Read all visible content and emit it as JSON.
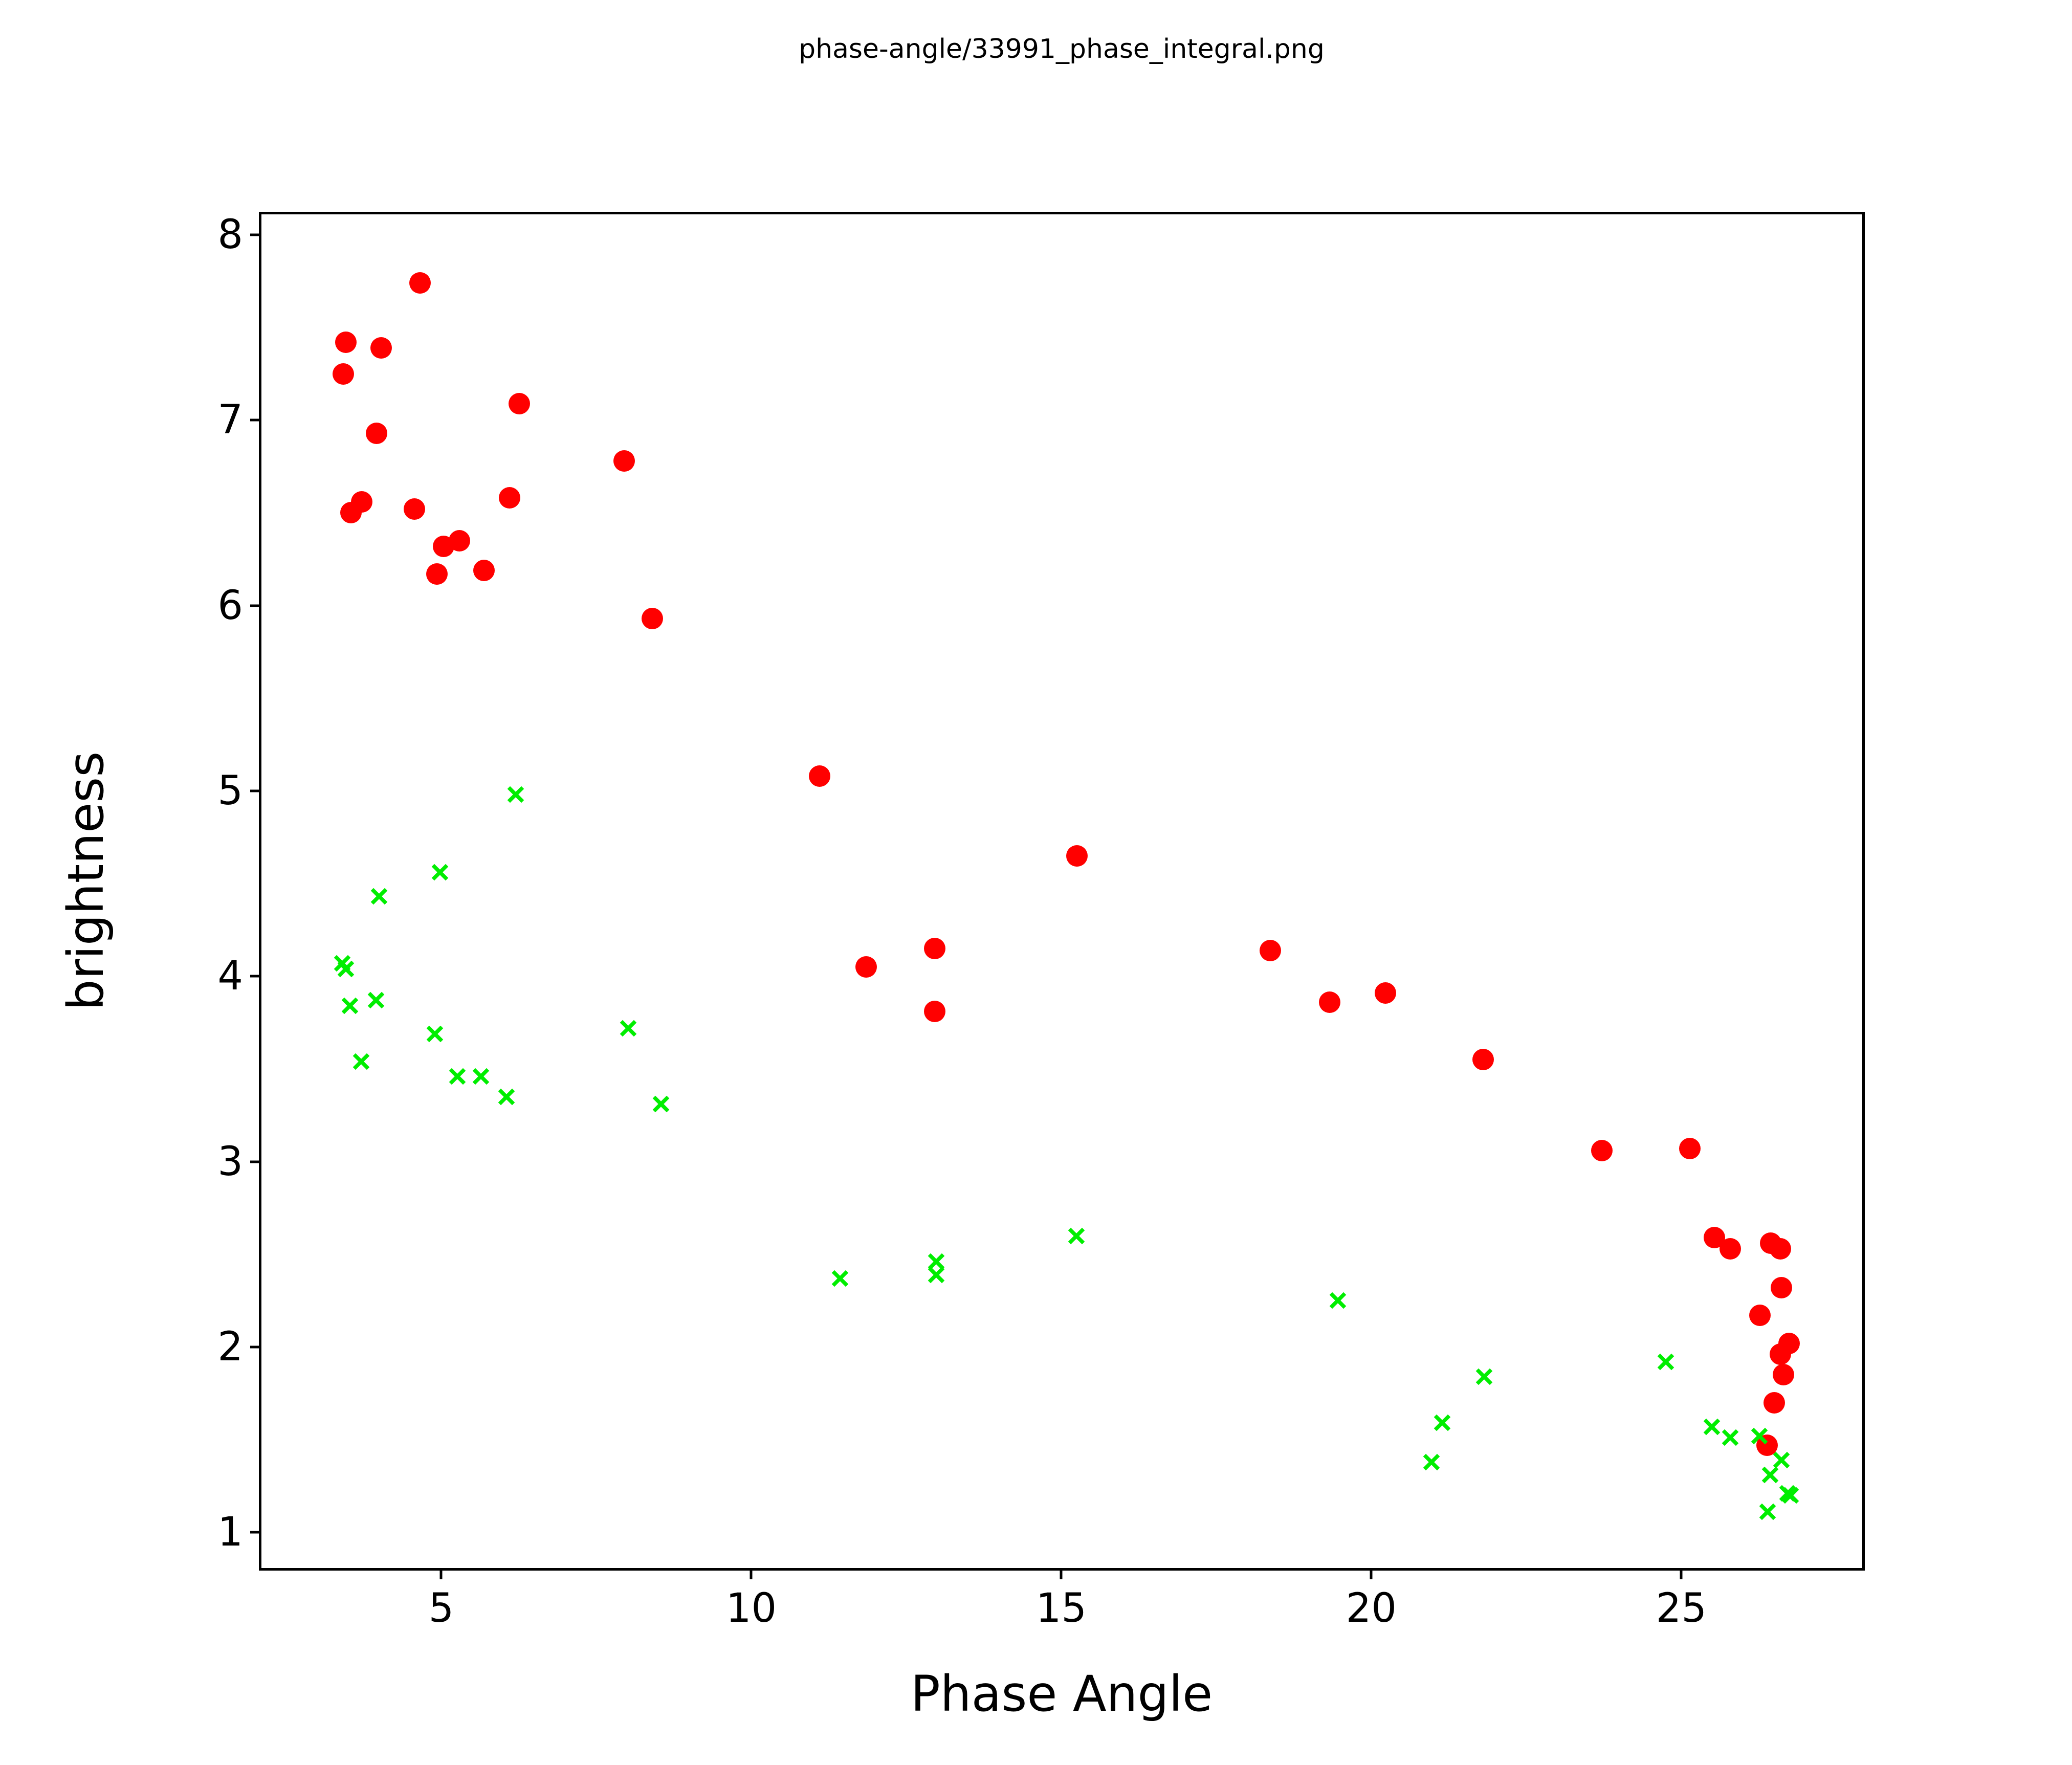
{
  "title": {
    "text": "phase-angle/33991_phase_integral.png"
  },
  "chart_data": {
    "type": "scatter",
    "title": "phase-angle/33991_phase_integral.png",
    "xlabel": "Phase Angle",
    "ylabel": "brightness",
    "xlim": [
      2.1,
      28.0
    ],
    "ylim": [
      0.78,
      8.11
    ],
    "x_ticks": [
      5,
      10,
      15,
      20,
      25
    ],
    "y_ticks": [
      1,
      2,
      3,
      4,
      5,
      6,
      7,
      8
    ],
    "grid": false,
    "legend_position": "none",
    "series": [
      {
        "name": "red-circles",
        "marker": "circle",
        "color": "#ff0000",
        "points": [
          [
            4.66,
            7.74
          ],
          [
            3.46,
            7.42
          ],
          [
            4.03,
            7.39
          ],
          [
            3.42,
            7.25
          ],
          [
            6.26,
            7.09
          ],
          [
            3.96,
            6.93
          ],
          [
            7.95,
            6.78
          ],
          [
            6.1,
            6.58
          ],
          [
            3.72,
            6.56
          ],
          [
            4.57,
            6.52
          ],
          [
            3.54,
            6.5
          ],
          [
            5.29,
            6.35
          ],
          [
            5.04,
            6.32
          ],
          [
            5.69,
            6.19
          ],
          [
            4.93,
            6.17
          ],
          [
            8.4,
            5.93
          ],
          [
            11.1,
            5.08
          ],
          [
            15.25,
            4.65
          ],
          [
            12.96,
            4.15
          ],
          [
            18.37,
            4.14
          ],
          [
            11.85,
            4.05
          ],
          [
            20.23,
            3.91
          ],
          [
            19.33,
            3.86
          ],
          [
            12.96,
            3.81
          ],
          [
            21.8,
            3.55
          ],
          [
            25.14,
            3.07
          ],
          [
            23.72,
            3.06
          ],
          [
            25.53,
            2.59
          ],
          [
            26.44,
            2.56
          ],
          [
            25.79,
            2.53
          ],
          [
            26.6,
            2.53
          ],
          [
            26.61,
            2.32
          ],
          [
            26.27,
            2.17
          ],
          [
            26.74,
            2.02
          ],
          [
            26.6,
            1.96
          ],
          [
            26.65,
            1.85
          ],
          [
            26.5,
            1.7
          ],
          [
            26.38,
            1.47
          ]
        ]
      },
      {
        "name": "green-crosses",
        "marker": "x",
        "color": "#00ee00",
        "points": [
          [
            6.2,
            4.98
          ],
          [
            4.98,
            4.56
          ],
          [
            4.0,
            4.43
          ],
          [
            3.4,
            4.07
          ],
          [
            3.46,
            4.04
          ],
          [
            3.95,
            3.87
          ],
          [
            3.53,
            3.84
          ],
          [
            8.02,
            3.72
          ],
          [
            4.9,
            3.69
          ],
          [
            3.71,
            3.54
          ],
          [
            5.26,
            3.46
          ],
          [
            5.64,
            3.46
          ],
          [
            6.05,
            3.35
          ],
          [
            8.54,
            3.31
          ],
          [
            15.24,
            2.6
          ],
          [
            12.98,
            2.46
          ],
          [
            12.98,
            2.39
          ],
          [
            11.43,
            2.37
          ],
          [
            19.46,
            2.25
          ],
          [
            24.75,
            1.92
          ],
          [
            21.82,
            1.84
          ],
          [
            21.14,
            1.59
          ],
          [
            25.49,
            1.57
          ],
          [
            26.26,
            1.52
          ],
          [
            25.79,
            1.51
          ],
          [
            26.61,
            1.39
          ],
          [
            20.97,
            1.38
          ],
          [
            26.43,
            1.31
          ],
          [
            26.71,
            1.21
          ],
          [
            26.76,
            1.2
          ],
          [
            26.39,
            1.11
          ]
        ]
      }
    ]
  }
}
